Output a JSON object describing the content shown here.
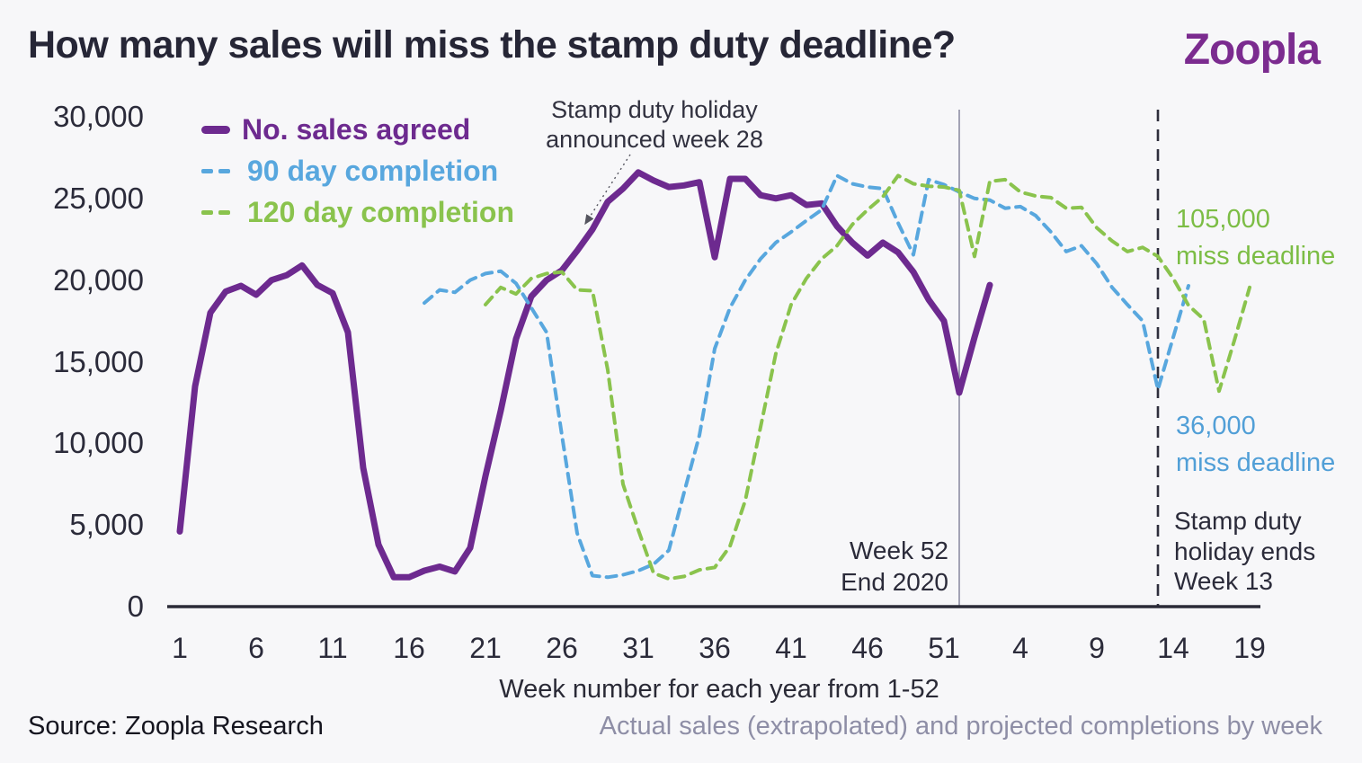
{
  "header": {
    "title": "How many sales will miss the stamp duty deadline?",
    "logo_text": "Zoopla",
    "logo_color": "#7b2b8f"
  },
  "legend": [
    {
      "label": "No. sales agreed",
      "color": "#6d2a8f",
      "line_style": "solid"
    },
    {
      "label": "90 day completion",
      "color": "#58a7de",
      "line_style": "dashed"
    },
    {
      "label": "120 day completion",
      "color": "#8ac34d",
      "line_style": "dashed"
    }
  ],
  "annotations": {
    "announce": {
      "line1": "Stamp duty holiday",
      "line2": "announced week 28"
    },
    "week52": {
      "line1": "Week 52",
      "line2": "End 2020"
    },
    "green_callout": {
      "line1": "105,000",
      "line2": "miss deadline"
    },
    "blue_callout": {
      "line1": "36,000",
      "line2": "miss deadline"
    },
    "holiday_ends": {
      "line1": "Stamp duty",
      "line2": "holiday ends",
      "line3": "Week 13"
    }
  },
  "axes": {
    "x_title": "Week number for each year from 1-52",
    "y_ticks": [
      {
        "value": 30000,
        "label": "30,000"
      },
      {
        "value": 25000,
        "label": "25,000"
      },
      {
        "value": 20000,
        "label": "20,000"
      },
      {
        "value": 15000,
        "label": "15,000"
      },
      {
        "value": 10000,
        "label": "10,000"
      },
      {
        "value": 5000,
        "label": "5,000"
      },
      {
        "value": 0,
        "label": "0"
      }
    ],
    "x_ticks": [
      {
        "week": 1,
        "label": "1"
      },
      {
        "week": 6,
        "label": "6"
      },
      {
        "week": 11,
        "label": "11"
      },
      {
        "week": 16,
        "label": "16"
      },
      {
        "week": 21,
        "label": "21"
      },
      {
        "week": 26,
        "label": "26"
      },
      {
        "week": 31,
        "label": "31"
      },
      {
        "week": 36,
        "label": "36"
      },
      {
        "week": 41,
        "label": "41"
      },
      {
        "week": 46,
        "label": "46"
      },
      {
        "week": 51,
        "label": "51"
      },
      {
        "week": 56,
        "label": "4"
      },
      {
        "week": 61,
        "label": "9"
      },
      {
        "week": 66,
        "label": "14"
      },
      {
        "week": 71,
        "label": "19"
      }
    ]
  },
  "footer": {
    "source": "Source: Zoopla Research",
    "caption": "Actual sales (extrapolated) and projected completions by week"
  },
  "chart_data": {
    "type": "line",
    "x_unit": "continuous week number (year 1 weeks 1-52, then year 2 weeks 1-19 as 53-71)",
    "ylim": [
      0,
      30000
    ],
    "grid": false,
    "legend_position": "top-left",
    "reference_lines": [
      {
        "name": "week52-end-2020-line",
        "at_week": 52,
        "style": "solid-gray",
        "label": "Week 52 End 2020"
      },
      {
        "name": "holiday-ends-line",
        "at_week": 65,
        "style": "dashed-dark",
        "label": "Stamp duty holiday ends Week 13"
      }
    ],
    "series": [
      {
        "name": "No. sales agreed",
        "color": "#6d2a8f",
        "dashed": false,
        "width": 7,
        "points": [
          [
            1,
            4600
          ],
          [
            2,
            13500
          ],
          [
            3,
            18000
          ],
          [
            4,
            19300
          ],
          [
            5,
            19650
          ],
          [
            6,
            19100
          ],
          [
            7,
            20000
          ],
          [
            8,
            20300
          ],
          [
            9,
            20900
          ],
          [
            10,
            19700
          ],
          [
            11,
            19200
          ],
          [
            12,
            16800
          ],
          [
            13,
            8500
          ],
          [
            14,
            3800
          ],
          [
            15,
            1800
          ],
          [
            16,
            1800
          ],
          [
            17,
            2200
          ],
          [
            18,
            2450
          ],
          [
            19,
            2150
          ],
          [
            20,
            3600
          ],
          [
            21,
            8000
          ],
          [
            22,
            12000
          ],
          [
            23,
            16400
          ],
          [
            24,
            19000
          ],
          [
            25,
            20000
          ],
          [
            26,
            20600
          ],
          [
            27,
            21800
          ],
          [
            28,
            23100
          ],
          [
            29,
            24800
          ],
          [
            30,
            25600
          ],
          [
            31,
            26600
          ],
          [
            32,
            26100
          ],
          [
            33,
            25700
          ],
          [
            34,
            25800
          ],
          [
            35,
            26000
          ],
          [
            36,
            21400
          ],
          [
            37,
            26200
          ],
          [
            38,
            26200
          ],
          [
            39,
            25200
          ],
          [
            40,
            25000
          ],
          [
            41,
            25200
          ],
          [
            42,
            24600
          ],
          [
            43,
            24700
          ],
          [
            44,
            23300
          ],
          [
            45,
            22300
          ],
          [
            46,
            21500
          ],
          [
            47,
            22300
          ],
          [
            48,
            21700
          ],
          [
            49,
            20500
          ],
          [
            50,
            18800
          ],
          [
            51,
            17500
          ],
          [
            52,
            13100
          ],
          [
            53,
            16500
          ],
          [
            54,
            19700
          ]
        ]
      },
      {
        "name": "90 day completion",
        "color": "#58a7de",
        "dashed": true,
        "width": 4,
        "points": [
          [
            17,
            18600
          ],
          [
            18,
            19400
          ],
          [
            19,
            19250
          ],
          [
            20,
            20000
          ],
          [
            21,
            20400
          ],
          [
            22,
            20550
          ],
          [
            23,
            19800
          ],
          [
            24,
            18300
          ],
          [
            25,
            16800
          ],
          [
            26,
            10500
          ],
          [
            27,
            4500
          ],
          [
            28,
            1900
          ],
          [
            29,
            1800
          ],
          [
            30,
            1950
          ],
          [
            31,
            2200
          ],
          [
            32,
            2600
          ],
          [
            33,
            3450
          ],
          [
            34,
            7000
          ],
          [
            35,
            10500
          ],
          [
            36,
            15800
          ],
          [
            37,
            18300
          ],
          [
            38,
            20000
          ],
          [
            39,
            21300
          ],
          [
            40,
            22300
          ],
          [
            41,
            22950
          ],
          [
            42,
            23650
          ],
          [
            43,
            24300
          ],
          [
            44,
            26400
          ],
          [
            45,
            25900
          ],
          [
            46,
            25700
          ],
          [
            47,
            25600
          ],
          [
            48,
            23500
          ],
          [
            49,
            21550
          ],
          [
            50,
            26150
          ],
          [
            51,
            25850
          ],
          [
            52,
            25400
          ],
          [
            53,
            25000
          ],
          [
            54,
            24900
          ],
          [
            55,
            24400
          ],
          [
            56,
            24500
          ],
          [
            57,
            23950
          ],
          [
            58,
            22950
          ],
          [
            59,
            21750
          ],
          [
            60,
            22100
          ],
          [
            61,
            21000
          ],
          [
            62,
            19550
          ],
          [
            63,
            18500
          ],
          [
            64,
            17500
          ],
          [
            65,
            13300
          ],
          [
            66,
            16500
          ],
          [
            67,
            19650
          ]
        ]
      },
      {
        "name": "120 day completion",
        "color": "#8ac34d",
        "dashed": true,
        "width": 4,
        "points": [
          [
            21,
            18500
          ],
          [
            22,
            19550
          ],
          [
            23,
            19150
          ],
          [
            24,
            20100
          ],
          [
            25,
            20400
          ],
          [
            26,
            20500
          ],
          [
            27,
            19400
          ],
          [
            28,
            19350
          ],
          [
            29,
            14500
          ],
          [
            30,
            7500
          ],
          [
            31,
            4700
          ],
          [
            32,
            2050
          ],
          [
            33,
            1700
          ],
          [
            34,
            1850
          ],
          [
            35,
            2250
          ],
          [
            36,
            2400
          ],
          [
            37,
            3700
          ],
          [
            38,
            6500
          ],
          [
            39,
            11000
          ],
          [
            40,
            15500
          ],
          [
            41,
            18500
          ],
          [
            42,
            20100
          ],
          [
            43,
            21300
          ],
          [
            44,
            22100
          ],
          [
            45,
            23400
          ],
          [
            46,
            24300
          ],
          [
            47,
            25100
          ],
          [
            48,
            26400
          ],
          [
            49,
            25900
          ],
          [
            50,
            25750
          ],
          [
            51,
            25700
          ],
          [
            52,
            25500
          ],
          [
            53,
            21450
          ],
          [
            54,
            26050
          ],
          [
            55,
            26150
          ],
          [
            56,
            25400
          ],
          [
            57,
            25150
          ],
          [
            58,
            25050
          ],
          [
            59,
            24400
          ],
          [
            60,
            24450
          ],
          [
            61,
            23200
          ],
          [
            62,
            22400
          ],
          [
            63,
            21750
          ],
          [
            64,
            22000
          ],
          [
            65,
            21450
          ],
          [
            66,
            20100
          ],
          [
            67,
            18450
          ],
          [
            68,
            17600
          ],
          [
            69,
            13200
          ],
          [
            70,
            16300
          ],
          [
            71,
            19550
          ]
        ]
      }
    ]
  }
}
